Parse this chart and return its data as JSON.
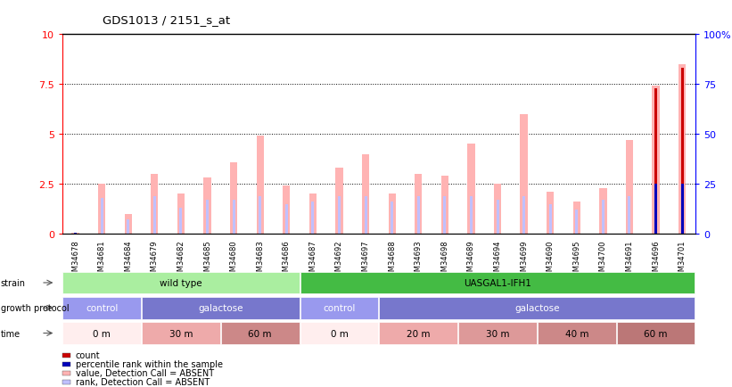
{
  "title": "GDS1013 / 2151_s_at",
  "samples": [
    "GSM34678",
    "GSM34681",
    "GSM34684",
    "GSM34679",
    "GSM34682",
    "GSM34685",
    "GSM34680",
    "GSM34683",
    "GSM34686",
    "GSM34687",
    "GSM34692",
    "GSM34697",
    "GSM34688",
    "GSM34693",
    "GSM34698",
    "GSM34689",
    "GSM34694",
    "GSM34699",
    "GSM34690",
    "GSM34695",
    "GSM34700",
    "GSM34691",
    "GSM34696",
    "GSM34701"
  ],
  "value_bars": [
    0.05,
    2.5,
    1.0,
    3.0,
    2.0,
    2.8,
    3.6,
    4.9,
    2.4,
    2.0,
    3.3,
    4.0,
    2.0,
    3.0,
    2.9,
    4.5,
    2.5,
    6.0,
    2.1,
    1.6,
    2.3,
    4.7,
    7.4,
    8.5
  ],
  "rank_bars": [
    0.05,
    1.8,
    0.7,
    1.9,
    1.3,
    1.7,
    1.7,
    1.9,
    1.5,
    1.6,
    1.9,
    1.9,
    1.6,
    1.9,
    1.9,
    1.9,
    1.7,
    1.9,
    1.5,
    1.2,
    1.7,
    1.9,
    2.4,
    0.05
  ],
  "count_bars_right": [
    0,
    0,
    0,
    0,
    0,
    0,
    0,
    0,
    0,
    0,
    0,
    0,
    0,
    0,
    0,
    0,
    0,
    0,
    0,
    0,
    0,
    0,
    73,
    83
  ],
  "percentile_bars_right": [
    0.5,
    0,
    0,
    0,
    0,
    0,
    0,
    0,
    0,
    0,
    0,
    0,
    0,
    0,
    0,
    0,
    0,
    0,
    0,
    0,
    0,
    0,
    25,
    25
  ],
  "ylim_left": [
    0,
    10
  ],
  "ylim_right": [
    0,
    100
  ],
  "yticks_left": [
    0,
    2.5,
    5.0,
    7.5,
    10
  ],
  "yticks_right": [
    0,
    25,
    50,
    75,
    100
  ],
  "ytick_labels_left": [
    "0",
    "2.5",
    "5",
    "7.5",
    "10"
  ],
  "ytick_labels_right": [
    "0",
    "25",
    "50",
    "75",
    "100%"
  ],
  "color_value": "#ffb3b3",
  "color_rank": "#c0c0ff",
  "color_count": "#cc0000",
  "color_percentile": "#0000bb",
  "strain_groups": [
    {
      "label": "wild type",
      "start": 0,
      "end": 8,
      "color": "#aaeea0"
    },
    {
      "label": "UASGAL1-IFH1",
      "start": 9,
      "end": 23,
      "color": "#44bb44"
    }
  ],
  "protocol_groups": [
    {
      "label": "control",
      "start": 0,
      "end": 2,
      "color": "#9999ee"
    },
    {
      "label": "galactose",
      "start": 3,
      "end": 8,
      "color": "#7777cc"
    },
    {
      "label": "control",
      "start": 9,
      "end": 11,
      "color": "#9999ee"
    },
    {
      "label": "galactose",
      "start": 12,
      "end": 23,
      "color": "#7777cc"
    }
  ],
  "time_groups": [
    {
      "label": "0 m",
      "start": 0,
      "end": 2,
      "color": "#ffeeee"
    },
    {
      "label": "30 m",
      "start": 3,
      "end": 5,
      "color": "#eeaaaa"
    },
    {
      "label": "60 m",
      "start": 6,
      "end": 8,
      "color": "#cc8888"
    },
    {
      "label": "0 m",
      "start": 9,
      "end": 11,
      "color": "#ffeeee"
    },
    {
      "label": "20 m",
      "start": 12,
      "end": 14,
      "color": "#eeaaaa"
    },
    {
      "label": "30 m",
      "start": 15,
      "end": 17,
      "color": "#dd9999"
    },
    {
      "label": "40 m",
      "start": 18,
      "end": 20,
      "color": "#cc8888"
    },
    {
      "label": "60 m",
      "start": 21,
      "end": 23,
      "color": "#bb7777"
    }
  ],
  "legend_items": [
    {
      "color": "#cc0000",
      "label": "count"
    },
    {
      "color": "#0000bb",
      "label": "percentile rank within the sample"
    },
    {
      "color": "#ffb3b3",
      "label": "value, Detection Call = ABSENT"
    },
    {
      "color": "#c0c0ff",
      "label": "rank, Detection Call = ABSENT"
    }
  ]
}
